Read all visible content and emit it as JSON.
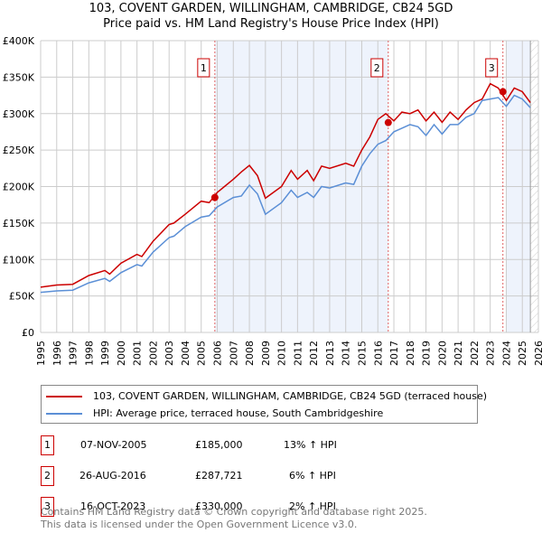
{
  "title_line1": "103, COVENT GARDEN, WILLINGHAM, CAMBRIDGE, CB24 5GD",
  "title_line2": "Price paid vs. HM Land Registry's House Price Index (HPI)",
  "chart_data": {
    "type": "line",
    "title": "103, COVENT GARDEN, WILLINGHAM, CAMBRIDGE, CB24 5GD — Price paid vs. HM Land Registry's House Price Index (HPI)",
    "xlim": [
      1995,
      2026
    ],
    "ylim": [
      0,
      400000
    ],
    "yticks": [
      0,
      50000,
      100000,
      150000,
      200000,
      250000,
      300000,
      350000,
      400000
    ],
    "ytick_labels": [
      "£0",
      "£50K",
      "£100K",
      "£150K",
      "£200K",
      "£250K",
      "£300K",
      "£350K",
      "£400K"
    ],
    "xticks": [
      1995,
      1996,
      1997,
      1998,
      1999,
      2000,
      2001,
      2002,
      2003,
      2004,
      2005,
      2006,
      2007,
      2008,
      2009,
      2010,
      2011,
      2012,
      2013,
      2014,
      2015,
      2016,
      2017,
      2018,
      2019,
      2020,
      2021,
      2022,
      2023,
      2024,
      2025,
      2026
    ],
    "grid": true,
    "shaded_ranges": [
      [
        2005.85,
        2016.65
      ],
      [
        2024.0,
        2025.5
      ]
    ],
    "hatched_range": [
      2025.5,
      2026
    ],
    "series": [
      {
        "name": "103, COVENT GARDEN, WILLINGHAM, CAMBRIDGE, CB24 5GD (terraced house)",
        "color": "#cc0000",
        "x": [
          1995,
          1996,
          1997,
          1998,
          1999,
          1999.3,
          2000,
          2001,
          2001.3,
          2002,
          2003,
          2003.3,
          2004,
          2005,
          2005.5,
          2006,
          2007,
          2007.5,
          2008,
          2008.5,
          2009,
          2010,
          2010.6,
          2011,
          2011.6,
          2012,
          2012.5,
          2013,
          2014,
          2014.5,
          2015,
          2015.5,
          2016,
          2016.5,
          2017,
          2017.5,
          2018,
          2018.5,
          2019,
          2019.5,
          2020,
          2020.5,
          2021,
          2021.5,
          2022,
          2022.5,
          2023,
          2023.5,
          2024,
          2024.5,
          2025,
          2025.5
        ],
        "values": [
          62000,
          65000,
          66000,
          78000,
          85000,
          80000,
          95000,
          107000,
          104000,
          125000,
          148000,
          150000,
          162000,
          180000,
          178000,
          192000,
          210000,
          220000,
          229000,
          215000,
          184000,
          200000,
          222000,
          210000,
          222000,
          208000,
          228000,
          225000,
          232000,
          228000,
          250000,
          268000,
          292000,
          300000,
          290000,
          302000,
          300000,
          305000,
          290000,
          302000,
          288000,
          302000,
          292000,
          305000,
          315000,
          320000,
          341000,
          335000,
          318000,
          335000,
          330000,
          315000
        ]
      },
      {
        "name": "HPI: Average price, terraced house, South Cambridgeshire",
        "color": "#5b8fd6",
        "x": [
          1995,
          1996,
          1997,
          1998,
          1999,
          1999.3,
          2000,
          2001,
          2001.3,
          2002,
          2003,
          2003.3,
          2004,
          2005,
          2005.5,
          2006,
          2007,
          2007.5,
          2008,
          2008.5,
          2009,
          2010,
          2010.6,
          2011,
          2011.6,
          2012,
          2012.5,
          2013,
          2014,
          2014.5,
          2015,
          2015.5,
          2016,
          2016.5,
          2017,
          2017.5,
          2018,
          2018.5,
          2019,
          2019.5,
          2020,
          2020.5,
          2021,
          2021.5,
          2022,
          2022.5,
          2023,
          2023.5,
          2024,
          2024.5,
          2025,
          2025.5
        ],
        "values": [
          55000,
          57000,
          58000,
          68000,
          74000,
          70000,
          82000,
          93000,
          91000,
          110000,
          130000,
          132000,
          145000,
          158000,
          160000,
          172000,
          185000,
          187000,
          202000,
          190000,
          162000,
          178000,
          195000,
          185000,
          192000,
          185000,
          200000,
          198000,
          205000,
          203000,
          228000,
          245000,
          258000,
          263000,
          275000,
          280000,
          285000,
          282000,
          270000,
          285000,
          272000,
          285000,
          285000,
          295000,
          300000,
          318000,
          320000,
          322000,
          310000,
          325000,
          320000,
          308000
        ]
      }
    ],
    "sales": [
      {
        "id": "1",
        "date": "07-NOV-2005",
        "x": 2005.85,
        "price": 185000,
        "price_label": "£185,000",
        "hpi": "13% ↑ HPI"
      },
      {
        "id": "2",
        "date": "26-AUG-2016",
        "x": 2016.65,
        "price": 287721,
        "price_label": "£287,721",
        "hpi": "6% ↑ HPI"
      },
      {
        "id": "3",
        "date": "16-OCT-2023",
        "x": 2023.79,
        "price": 330000,
        "price_label": "£330,000",
        "hpi": "2% ↑ HPI"
      }
    ]
  },
  "legend": {
    "red": "103, COVENT GARDEN, WILLINGHAM, CAMBRIDGE, CB24 5GD (terraced house)",
    "blue": "HPI: Average price, terraced house, South Cambridgeshire"
  },
  "footer": {
    "line1": "Contains HM Land Registry data © Crown copyright and database right 2025.",
    "line2": "This data is licensed under the Open Government Licence v3.0."
  }
}
